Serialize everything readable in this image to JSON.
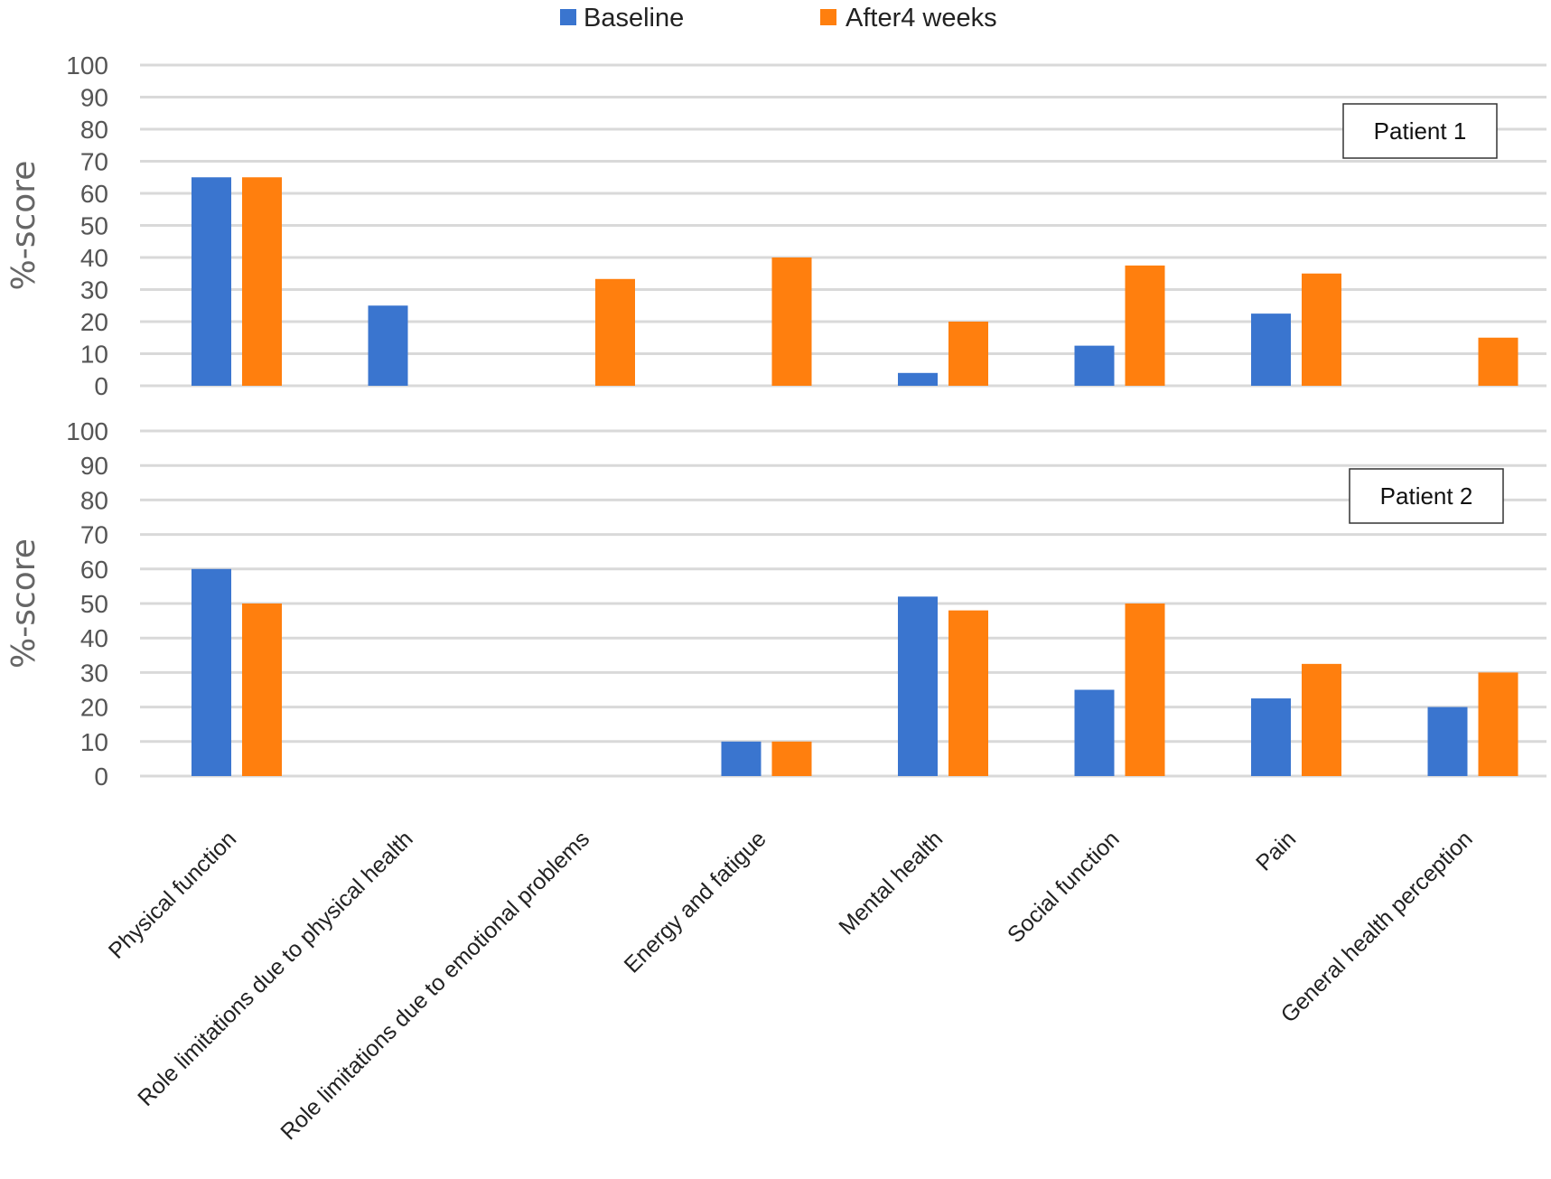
{
  "colors": {
    "baseline": "#3a75cf",
    "after": "#ff7f0e",
    "grid": "#d9d9d9"
  },
  "chart_data": {
    "type": "bar",
    "legend": {
      "position": "top-center",
      "entries": [
        "Baseline",
        "After4 weeks"
      ]
    },
    "categories": [
      "Physical function",
      "Role limitations due to physical health",
      "Role limitations due to emotional problems",
      "Energy and fatigue",
      "Mental health",
      "Social function",
      "Pain",
      "General health perception"
    ],
    "panels": [
      {
        "title": "Patient 1",
        "ylabel": "%-score",
        "ylim": [
          0,
          100
        ],
        "yticks": [
          0,
          10,
          20,
          30,
          40,
          50,
          60,
          70,
          80,
          90,
          100
        ],
        "grid": true,
        "series": [
          {
            "name": "Baseline",
            "values": [
              65,
              25,
              0,
              0,
              4,
              12.5,
              22.5,
              0
            ]
          },
          {
            "name": "After4 weeks",
            "values": [
              65,
              0,
              33.3,
              40,
              20,
              37.5,
              35,
              15
            ]
          }
        ]
      },
      {
        "title": "Patient 2",
        "ylabel": "%-score",
        "ylim": [
          0,
          100
        ],
        "yticks": [
          0,
          10,
          20,
          30,
          40,
          50,
          60,
          70,
          80,
          90,
          100
        ],
        "grid": true,
        "series": [
          {
            "name": "Baseline",
            "values": [
              60,
              0,
              0,
              10,
              52,
              25,
              22.5,
              20
            ]
          },
          {
            "name": "After4 weeks",
            "values": [
              50,
              0,
              0,
              10,
              48,
              50,
              32.5,
              30
            ]
          }
        ]
      }
    ]
  }
}
